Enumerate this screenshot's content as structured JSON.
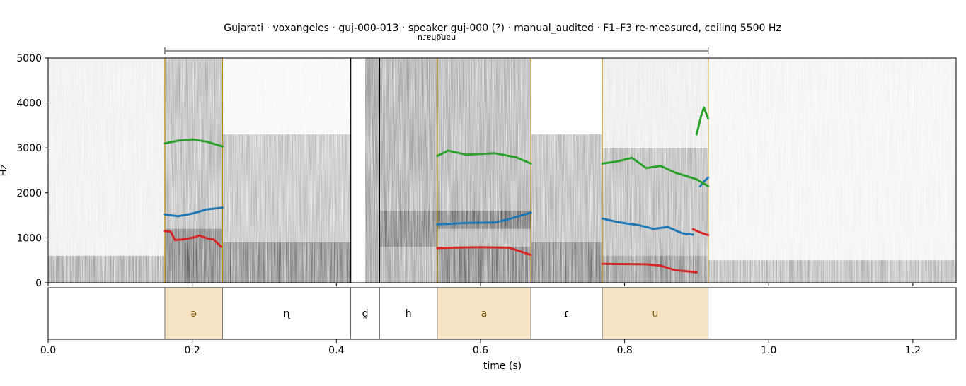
{
  "chart_data": {
    "type": "spectrogram",
    "title": "Gujarati · voxangeles · guj-000-013 · speaker guj-000 (?) · manual_audited · F1–F3 re-measured, ceiling 5500 Hz",
    "word_label": "nəɳd̤haɾu",
    "word_span": [
      0.162,
      0.916
    ],
    "xlabel": "time (s)",
    "ylabel": "Hz",
    "xlim": [
      0.0,
      1.26
    ],
    "ylim": [
      0,
      5000
    ],
    "x_ticks": [
      0.0,
      0.2,
      0.4,
      0.6,
      0.8,
      1.0,
      1.2
    ],
    "x_tick_labels": [
      "0.0",
      "0.2",
      "0.4",
      "0.6",
      "0.8",
      "1.0",
      "1.2"
    ],
    "y_ticks": [
      0,
      1000,
      2000,
      3000,
      4000,
      5000
    ],
    "y_tick_labels": [
      "0",
      "1000",
      "2000",
      "3000",
      "4000",
      "5000"
    ],
    "segments": [
      {
        "label": "ə",
        "start": 0.162,
        "end": 0.242,
        "vowel": true
      },
      {
        "label": "ɳ",
        "start": 0.242,
        "end": 0.42,
        "vowel": false
      },
      {
        "label": "d̤",
        "start": 0.42,
        "end": 0.46,
        "vowel": false
      },
      {
        "label": "h",
        "start": 0.46,
        "end": 0.54,
        "vowel": false
      },
      {
        "label": "a",
        "start": 0.54,
        "end": 0.67,
        "vowel": true
      },
      {
        "label": "ɾ",
        "start": 0.67,
        "end": 0.769,
        "vowel": false
      },
      {
        "label": "u",
        "start": 0.769,
        "end": 0.916,
        "vowel": true
      }
    ],
    "series": [
      {
        "key": "F1",
        "color": "#d62728",
        "tracks": [
          [
            [
              0.162,
              1150
            ],
            [
              0.17,
              1140
            ],
            [
              0.176,
              950
            ],
            [
              0.185,
              960
            ],
            [
              0.2,
              1000
            ],
            [
              0.21,
              1050
            ],
            [
              0.22,
              990
            ],
            [
              0.23,
              960
            ],
            [
              0.24,
              800
            ]
          ],
          [
            [
              0.54,
              770
            ],
            [
              0.56,
              780
            ],
            [
              0.6,
              790
            ],
            [
              0.64,
              780
            ],
            [
              0.67,
              620
            ]
          ],
          [
            [
              0.769,
              420
            ],
            [
              0.8,
              415
            ],
            [
              0.83,
              410
            ],
            [
              0.85,
              380
            ],
            [
              0.87,
              280
            ],
            [
              0.89,
              250
            ],
            [
              0.9,
              230
            ]
          ],
          [
            [
              0.895,
              1190
            ],
            [
              0.905,
              1120
            ],
            [
              0.916,
              1060
            ]
          ]
        ]
      },
      {
        "key": "F2",
        "color": "#1f77b4",
        "tracks": [
          [
            [
              0.162,
              1520
            ],
            [
              0.18,
              1480
            ],
            [
              0.2,
              1540
            ],
            [
              0.22,
              1630
            ],
            [
              0.242,
              1670
            ]
          ],
          [
            [
              0.54,
              1300
            ],
            [
              0.58,
              1330
            ],
            [
              0.62,
              1340
            ],
            [
              0.64,
              1420
            ],
            [
              0.67,
              1560
            ]
          ],
          [
            [
              0.769,
              1430
            ],
            [
              0.79,
              1350
            ],
            [
              0.82,
              1280
            ],
            [
              0.84,
              1200
            ],
            [
              0.86,
              1240
            ],
            [
              0.88,
              1100
            ],
            [
              0.895,
              1070
            ]
          ],
          [
            [
              0.905,
              2150
            ],
            [
              0.91,
              2250
            ],
            [
              0.916,
              2340
            ]
          ]
        ]
      },
      {
        "key": "F3",
        "color": "#2ca02c",
        "tracks": [
          [
            [
              0.162,
              3100
            ],
            [
              0.18,
              3160
            ],
            [
              0.2,
              3190
            ],
            [
              0.22,
              3140
            ],
            [
              0.242,
              3030
            ]
          ],
          [
            [
              0.54,
              2820
            ],
            [
              0.555,
              2940
            ],
            [
              0.58,
              2850
            ],
            [
              0.62,
              2880
            ],
            [
              0.65,
              2790
            ],
            [
              0.67,
              2650
            ]
          ],
          [
            [
              0.769,
              2650
            ],
            [
              0.79,
              2700
            ],
            [
              0.81,
              2780
            ],
            [
              0.83,
              2550
            ],
            [
              0.85,
              2600
            ],
            [
              0.87,
              2450
            ],
            [
              0.9,
              2300
            ],
            [
              0.916,
              2150
            ]
          ],
          [
            [
              0.9,
              3300
            ],
            [
              0.906,
              3700
            ],
            [
              0.91,
              3900
            ],
            [
              0.916,
              3650
            ]
          ]
        ]
      }
    ]
  }
}
